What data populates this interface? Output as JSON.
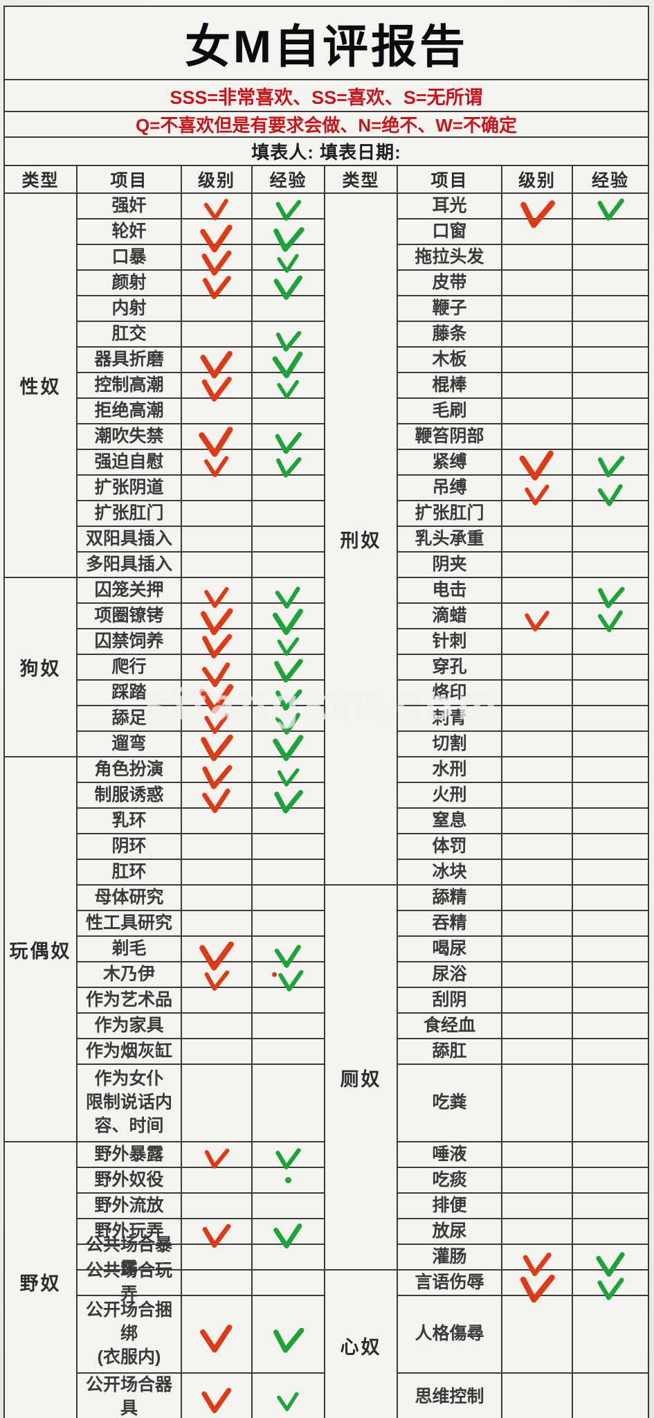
{
  "title": "女M自评报告",
  "legend": {
    "line1": "SSS=非常喜欢、SS=喜欢、S=无所谓",
    "line2": "Q=不喜欢但是有要求会做、N=绝不、W=不确定"
  },
  "filler": "填表人: 填表日期:",
  "header": {
    "type": "类型",
    "item": "项目",
    "level": "级别",
    "experience": "经验"
  },
  "watermark": "sifangktv.com",
  "colors": {
    "red_check": "#dd3a17",
    "green_check": "#1ea33b",
    "legend_red": "#c4161c",
    "grid_line": "#3b3a38",
    "paper": "#f4f3ef",
    "ink": "#3a3a3a"
  },
  "left_table": {
    "categories": [
      {
        "name": "性奴",
        "items": [
          {
            "label": "强奸",
            "level_mark": "check",
            "exp_mark": "check"
          },
          {
            "label": "轮奸",
            "level_mark": "check",
            "exp_mark": "check"
          },
          {
            "label": "口暴",
            "level_mark": "check",
            "exp_mark": "check"
          },
          {
            "label": "颜射",
            "level_mark": "check",
            "exp_mark": "check"
          },
          {
            "label": "内射",
            "level_mark": "",
            "exp_mark": ""
          },
          {
            "label": "肛交",
            "level_mark": "",
            "exp_mark": "check"
          },
          {
            "label": "器具折磨",
            "level_mark": "check",
            "exp_mark": "check"
          },
          {
            "label": "控制高潮",
            "level_mark": "check",
            "exp_mark": "check"
          },
          {
            "label": "拒绝高潮",
            "level_mark": "",
            "exp_mark": ""
          },
          {
            "label": "潮吹失禁",
            "level_mark": "check",
            "exp_mark": "check"
          },
          {
            "label": "强迫自慰",
            "level_mark": "check",
            "exp_mark": "check"
          },
          {
            "label": "扩张阴道",
            "level_mark": "",
            "exp_mark": ""
          },
          {
            "label": "扩张肛门",
            "level_mark": "",
            "exp_mark": ""
          },
          {
            "label": "双阳具插入",
            "level_mark": "",
            "exp_mark": ""
          },
          {
            "label": "多阳具插入",
            "level_mark": "",
            "exp_mark": ""
          }
        ]
      },
      {
        "name": "狗奴",
        "items": [
          {
            "label": "囚笼关押",
            "level_mark": "check",
            "exp_mark": "check"
          },
          {
            "label": "项圈镣铐",
            "level_mark": "check",
            "exp_mark": "check"
          },
          {
            "label": "囚禁饲养",
            "level_mark": "check",
            "exp_mark": "check"
          },
          {
            "label": "爬行",
            "level_mark": "check",
            "exp_mark": "check"
          },
          {
            "label": "踩踏",
            "level_mark": "check",
            "exp_mark": "check"
          },
          {
            "label": "舔足",
            "level_mark": "check",
            "exp_mark": "check"
          },
          {
            "label": "遛弯",
            "level_mark": "check",
            "exp_mark": "check"
          }
        ]
      },
      {
        "name": "玩偶奴",
        "items": [
          {
            "label": "角色扮演",
            "level_mark": "check",
            "exp_mark": "check"
          },
          {
            "label": "制服诱惑",
            "level_mark": "check",
            "exp_mark": "check"
          },
          {
            "label": "乳环",
            "level_mark": "",
            "exp_mark": ""
          },
          {
            "label": "阴环",
            "level_mark": "",
            "exp_mark": ""
          },
          {
            "label": "肛环",
            "level_mark": "",
            "exp_mark": ""
          },
          {
            "label": "母体研究",
            "level_mark": "",
            "exp_mark": ""
          },
          {
            "label": "性工具研究",
            "level_mark": "",
            "exp_mark": ""
          },
          {
            "label": "剃毛",
            "level_mark": "check",
            "exp_mark": "check"
          },
          {
            "label": "木乃伊",
            "level_mark": "check",
            "exp_mark": "dot+check"
          },
          {
            "label": "作为艺术品",
            "level_mark": "",
            "exp_mark": ""
          },
          {
            "label": "作为家具",
            "level_mark": "",
            "exp_mark": ""
          },
          {
            "label": "作为烟灰缸",
            "level_mark": "",
            "exp_mark": ""
          },
          {
            "label": "作为女仆\n限制说话内容、时间",
            "level_mark": "",
            "exp_mark": "",
            "tall": true
          }
        ]
      },
      {
        "name": "野奴",
        "items": [
          {
            "label": "野外暴露",
            "level_mark": "check",
            "exp_mark": "check"
          },
          {
            "label": "野外奴役",
            "level_mark": "",
            "exp_mark": "dot"
          },
          {
            "label": "野外流放",
            "level_mark": "",
            "exp_mark": ""
          },
          {
            "label": "野外玩弄",
            "level_mark": "check",
            "exp_mark": "check"
          },
          {
            "label": "公共场合暴露",
            "level_mark": "",
            "exp_mark": ""
          },
          {
            "label": "公共场合玩弄",
            "level_mark": "",
            "exp_mark": ""
          },
          {
            "label": "公开场合捆绑\n(衣服内)",
            "level_mark": "check",
            "exp_mark": "check",
            "tall": true
          },
          {
            "label": "公开场合器具",
            "level_mark": "check",
            "exp_mark": "check"
          }
        ]
      }
    ]
  },
  "right_table": {
    "categories": [
      {
        "name": "刑奴",
        "items": [
          {
            "label": "耳光",
            "level_mark": "check",
            "exp_mark": "check"
          },
          {
            "label": "口窗",
            "level_mark": "",
            "exp_mark": ""
          },
          {
            "label": "拖拉头发",
            "level_mark": "",
            "exp_mark": ""
          },
          {
            "label": "皮带",
            "level_mark": "",
            "exp_mark": ""
          },
          {
            "label": "鞭子",
            "level_mark": "",
            "exp_mark": ""
          },
          {
            "label": "藤条",
            "level_mark": "",
            "exp_mark": ""
          },
          {
            "label": "木板",
            "level_mark": "",
            "exp_mark": ""
          },
          {
            "label": "棍棒",
            "level_mark": "",
            "exp_mark": ""
          },
          {
            "label": "毛刷",
            "level_mark": "",
            "exp_mark": ""
          },
          {
            "label": "鞭笞阴部",
            "level_mark": "",
            "exp_mark": ""
          },
          {
            "label": "紧缚",
            "level_mark": "check",
            "exp_mark": "check"
          },
          {
            "label": "吊缚",
            "level_mark": "check",
            "exp_mark": "check"
          },
          {
            "label": "扩张肛门",
            "level_mark": "",
            "exp_mark": ""
          },
          {
            "label": "乳头承重",
            "level_mark": "",
            "exp_mark": ""
          },
          {
            "label": "阴夹",
            "level_mark": "",
            "exp_mark": ""
          },
          {
            "label": "电击",
            "level_mark": "",
            "exp_mark": "check"
          },
          {
            "label": "滴蜡",
            "level_mark": "check",
            "exp_mark": "check"
          },
          {
            "label": "针刺",
            "level_mark": "",
            "exp_mark": ""
          },
          {
            "label": "穿孔",
            "level_mark": "",
            "exp_mark": ""
          },
          {
            "label": "烙印",
            "level_mark": "",
            "exp_mark": ""
          },
          {
            "label": "刺青",
            "level_mark": "",
            "exp_mark": ""
          },
          {
            "label": "切割",
            "level_mark": "",
            "exp_mark": ""
          },
          {
            "label": "水刑",
            "level_mark": "",
            "exp_mark": ""
          },
          {
            "label": "火刑",
            "level_mark": "",
            "exp_mark": ""
          },
          {
            "label": "窒息",
            "level_mark": "",
            "exp_mark": ""
          },
          {
            "label": "体罚",
            "level_mark": "",
            "exp_mark": ""
          },
          {
            "label": "冰块",
            "level_mark": "",
            "exp_mark": ""
          }
        ]
      },
      {
        "name": "厕奴",
        "items": [
          {
            "label": "舔精",
            "level_mark": "",
            "exp_mark": ""
          },
          {
            "label": "吞精",
            "level_mark": "",
            "exp_mark": ""
          },
          {
            "label": "喝尿",
            "level_mark": "",
            "exp_mark": ""
          },
          {
            "label": "尿浴",
            "level_mark": "",
            "exp_mark": ""
          },
          {
            "label": "刮阴",
            "level_mark": "",
            "exp_mark": ""
          },
          {
            "label": "食经血",
            "level_mark": "",
            "exp_mark": ""
          },
          {
            "label": "舔肛",
            "level_mark": "",
            "exp_mark": ""
          },
          {
            "label": "吃粪",
            "level_mark": "",
            "exp_mark": "",
            "tall": true
          },
          {
            "label": "唾液",
            "level_mark": "",
            "exp_mark": ""
          },
          {
            "label": "吃痰",
            "level_mark": "",
            "exp_mark": ""
          },
          {
            "label": "排便",
            "level_mark": "",
            "exp_mark": ""
          },
          {
            "label": "放尿",
            "level_mark": "",
            "exp_mark": ""
          },
          {
            "label": "灌肠",
            "level_mark": "check",
            "exp_mark": "check"
          }
        ]
      },
      {
        "name": "心奴",
        "items": [
          {
            "label": "言语伤辱",
            "level_mark": "check",
            "exp_mark": "check"
          },
          {
            "label": "人格傷尋",
            "level_mark": "",
            "exp_mark": "",
            "tall": true
          },
          {
            "label": "思维控制",
            "level_mark": "",
            "exp_mark": ""
          }
        ]
      }
    ]
  }
}
